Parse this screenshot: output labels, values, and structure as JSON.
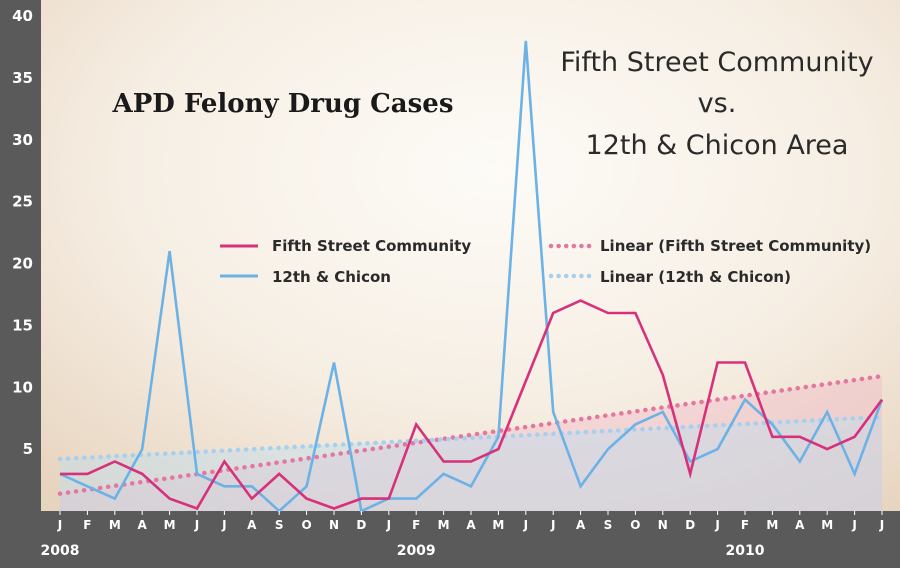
{
  "chart_data": {
    "type": "line",
    "title": "APD Felony Drug Cases",
    "subtitle_lines": [
      "Fifth Street Community",
      "vs.",
      "12th & Chicon Area"
    ],
    "x": [
      "J",
      "F",
      "M",
      "A",
      "M",
      "J",
      "J",
      "A",
      "S",
      "O",
      "N",
      "D",
      "J",
      "F",
      "M",
      "A",
      "M",
      "J",
      "J",
      "A",
      "S",
      "O",
      "N",
      "D",
      "J",
      "F",
      "M",
      "A",
      "M",
      "J",
      "J"
    ],
    "year_labels": [
      {
        "label": "2008",
        "index": 0
      },
      {
        "label": "2009",
        "index": 13
      },
      {
        "label": "2010",
        "index": 25
      }
    ],
    "yticks": [
      5,
      10,
      15,
      20,
      25,
      30,
      35,
      40
    ],
    "ylim": [
      0,
      40
    ],
    "series": [
      {
        "name": "Fifth Street Community",
        "color": "#d6317a",
        "values": [
          3,
          3,
          4,
          3,
          1,
          0.2,
          4,
          1,
          3,
          1,
          0.2,
          1,
          1,
          7,
          4,
          4,
          5,
          10.5,
          16,
          17,
          16,
          16,
          11,
          3,
          12,
          12,
          6,
          6,
          5,
          6,
          9
        ]
      },
      {
        "name": "12th & Chicon",
        "color": "#6cb2e6",
        "values": [
          3,
          2,
          1,
          5,
          21,
          3,
          2,
          2,
          0,
          2,
          12,
          0,
          1,
          1,
          3,
          2,
          6,
          38,
          8,
          2,
          5,
          7,
          8,
          4,
          5,
          9,
          7,
          4,
          8,
          3,
          9
        ]
      }
    ],
    "trendlines": [
      {
        "name": "Linear (Fifth Street Community)",
        "color": "#e5779f",
        "start": 1.4,
        "end": 10.9
      },
      {
        "name": "Linear (12th & Chicon)",
        "color": "#a6d0ee",
        "start": 4.2,
        "end": 7.6
      }
    ]
  }
}
